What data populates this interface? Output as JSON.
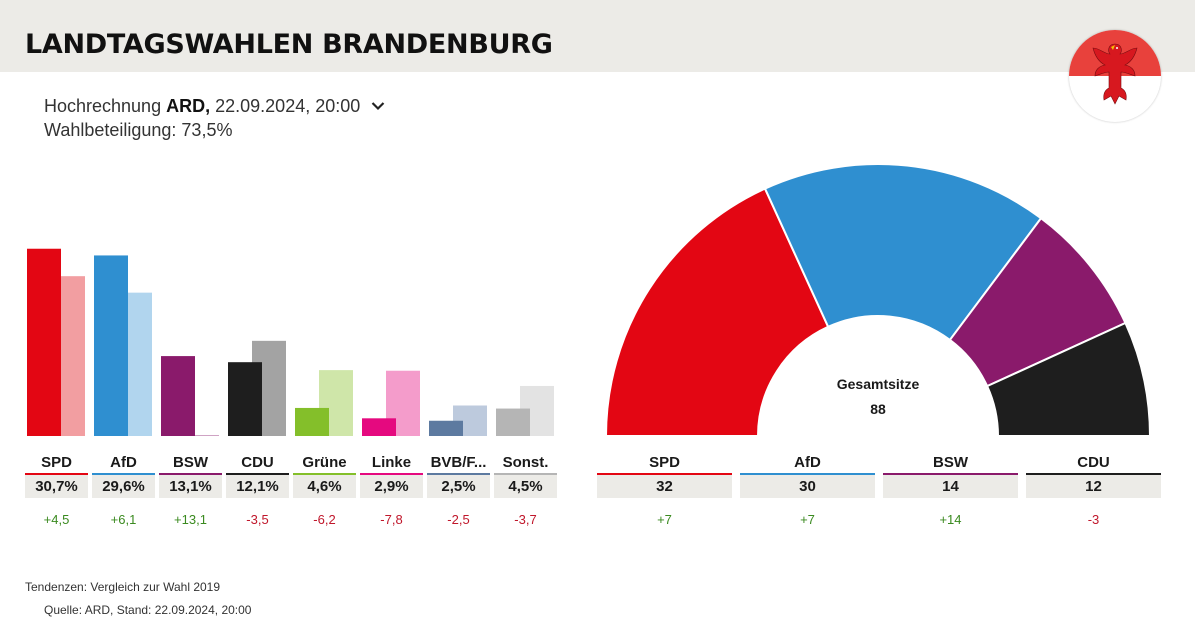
{
  "header": {
    "title": "LANDTAGSWAHLEN BRANDENBURG"
  },
  "meta": {
    "prefix": "Hochrechnung",
    "source": "ARD,",
    "datetime": "22.09.2024, 20:00",
    "turnout": "Wahlbeteiligung: 73,5%"
  },
  "crest_icon": "brandenburg-eagle-icon",
  "chart_data": [
    {
      "type": "bar",
      "categories": [
        "SPD",
        "AfD",
        "BSW",
        "CDU",
        "Grüne",
        "Linke",
        "BVB/F...",
        "Sonst."
      ],
      "series": [
        {
          "name": "2024",
          "values": [
            30.7,
            29.6,
            13.1,
            12.1,
            4.6,
            2.9,
            2.5,
            4.5
          ]
        },
        {
          "name": "2019",
          "values": [
            26.2,
            23.5,
            0.0,
            15.6,
            10.8,
            10.7,
            5.0,
            8.2
          ]
        }
      ],
      "colors": [
        "#e30613",
        "#2f8fd0",
        "#8a1a6b",
        "#1e1e1e",
        "#84bf2a",
        "#e5097f",
        "#5d7aa0",
        "#b5b5b5"
      ],
      "prev_colors": [
        "#f29ea1",
        "#b1d5ee",
        "#cfa3c4",
        "#a3a3a3",
        "#cfe6a9",
        "#f49ccb",
        "#bdcadd",
        "#e3e3e3"
      ],
      "percent_labels": [
        "30,7%",
        "29,6%",
        "13,1%",
        "12,1%",
        "4,6%",
        "2,9%",
        "2,5%",
        "4,5%"
      ],
      "diff_labels": [
        "+4,5",
        "+6,1",
        "+13,1",
        "-3,5",
        "-6,2",
        "-7,8",
        "-2,5",
        "-3,7"
      ]
    },
    {
      "type": "pie",
      "categories": [
        "SPD",
        "AfD",
        "BSW",
        "CDU"
      ],
      "values": [
        32,
        30,
        14,
        12
      ],
      "colors": [
        "#e30613",
        "#2f8fd0",
        "#8a1a6b",
        "#1e1e1e"
      ],
      "center_label": "Gesamtsitze",
      "total": "88",
      "seat_labels": [
        "32",
        "30",
        "14",
        "12"
      ],
      "diff_labels": [
        "+7",
        "+7",
        "+14",
        "-3"
      ]
    }
  ],
  "footer": {
    "note": "Tendenzen: Vergleich zur Wahl 2019",
    "source": "Quelle: ARD, Stand: 22.09.2024, 20:00"
  }
}
